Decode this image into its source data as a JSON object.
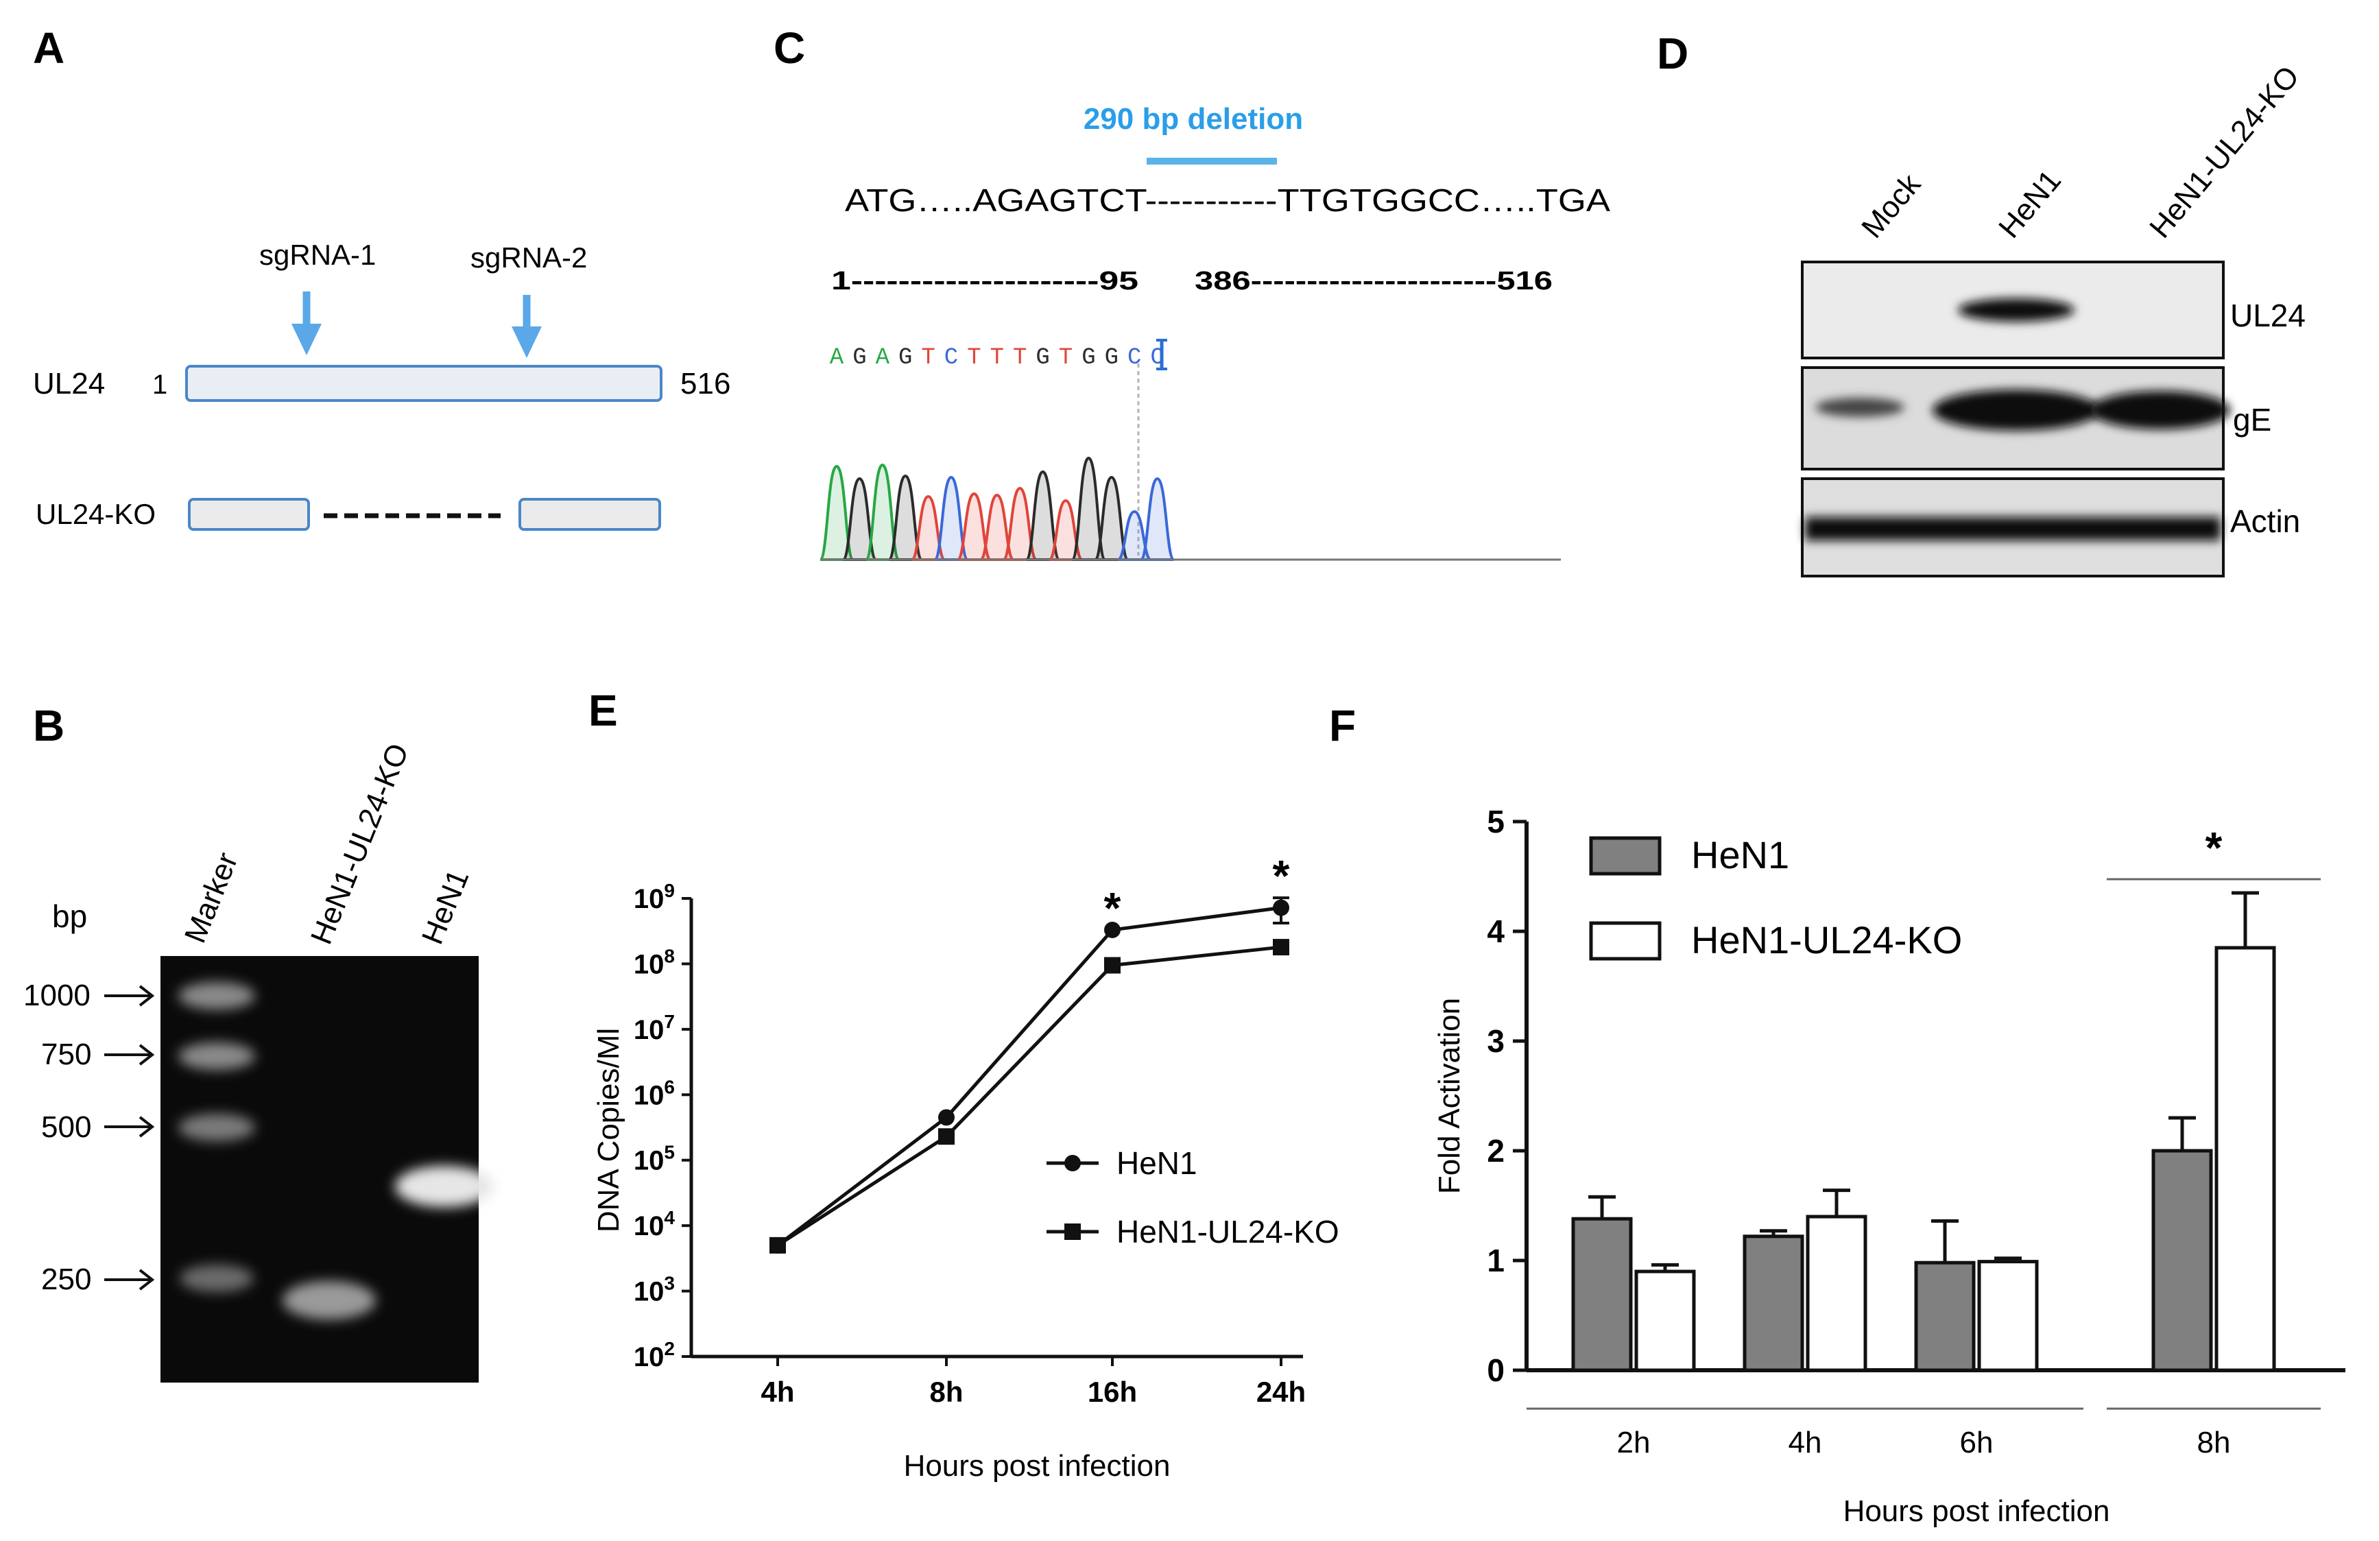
{
  "panels": {
    "A": {
      "letter": "A",
      "sgrna1": "sgRNA-1",
      "sgrna2": "sgRNA-2",
      "ul24": "UL24",
      "start": "1",
      "end": "516",
      "ko": "UL24-KO"
    },
    "B": {
      "letter": "B",
      "bp": "bp",
      "lanes": [
        "Marker",
        "HeN1-UL24-KO",
        "HeN1"
      ],
      "marker_sizes": [
        "1000",
        "750",
        "500",
        "250"
      ]
    },
    "C": {
      "letter": "C",
      "deletion": "290 bp deletion",
      "sequence": "ATG…..AGAGTCT-----------TTGTGGCC…..TGA",
      "range_left": "1---------------------95",
      "range_right": "386----------------------516",
      "bases": [
        "A",
        "G",
        "A",
        "G",
        "T",
        "C",
        "T",
        "T",
        "T",
        "G",
        "T",
        "G",
        "G",
        "C",
        "C"
      ],
      "base_colors": {
        "A": "#27a844",
        "G": "#2b2b2b",
        "T": "#e0453a",
        "C": "#3a68d8"
      }
    },
    "D": {
      "letter": "D",
      "lanes": [
        "Mock",
        "HeN1",
        "HeN1-UL24-KO"
      ],
      "blots": [
        "UL24",
        "gE",
        "Actin"
      ]
    }
  },
  "chart_data": [
    {
      "panel": "E",
      "type": "line",
      "categories": [
        "4h",
        "8h",
        "16h",
        "24h"
      ],
      "series": [
        {
          "name": "HeN1",
          "marker": "circle",
          "values": [
            5000,
            450000,
            330000000,
            720000000
          ],
          "errors": [
            0,
            0,
            0,
            300000000
          ]
        },
        {
          "name": "HeN1-UL24-KO",
          "marker": "square",
          "values": [
            5000,
            230000,
            95000000,
            180000000
          ],
          "errors": [
            0,
            0,
            0,
            0
          ]
        }
      ],
      "yscale": "log",
      "ylim": [
        100,
        1000000000
      ],
      "yticks": [
        {
          "base": "10",
          "exp": "2"
        },
        {
          "base": "10",
          "exp": "3"
        },
        {
          "base": "10",
          "exp": "4"
        },
        {
          "base": "10",
          "exp": "5"
        },
        {
          "base": "10",
          "exp": "6"
        },
        {
          "base": "10",
          "exp": "7"
        },
        {
          "base": "10",
          "exp": "8"
        },
        {
          "base": "10",
          "exp": "9"
        }
      ],
      "xlabel": "Hours post infection",
      "ylabel": "DNA Copies/Ml",
      "significance": [
        {
          "category": "16h",
          "label": "*"
        },
        {
          "category": "24h",
          "label": "*"
        }
      ]
    },
    {
      "panel": "F",
      "type": "bar",
      "categories": [
        "2h",
        "4h",
        "6h",
        "8h"
      ],
      "series": [
        {
          "name": "HeN1",
          "color": "#808080",
          "values": [
            1.38,
            1.22,
            0.98,
            2.0
          ],
          "errors": [
            0.2,
            0.05,
            0.38,
            0.3
          ]
        },
        {
          "name": "HeN1-UL24-KO",
          "color": "#ffffff",
          "values": [
            0.9,
            1.4,
            0.99,
            3.85
          ],
          "errors": [
            0.06,
            0.24,
            0.03,
            0.5
          ]
        }
      ],
      "ylim": [
        0,
        5
      ],
      "yticks": [
        "0",
        "1",
        "2",
        "3",
        "4",
        "5"
      ],
      "xlabel": "Hours post infection",
      "ylabel": "Fold Activation",
      "significance": [
        {
          "category": "8h",
          "label": "*"
        }
      ]
    }
  ]
}
